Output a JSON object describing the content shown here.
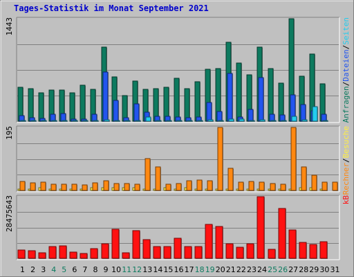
{
  "chart_data": {
    "type": "bar",
    "title": "Tages-Statistik im Monat September 2021",
    "days": [
      "1",
      "2",
      "3",
      "4",
      "5",
      "6",
      "7",
      "8",
      "9",
      "10",
      "11",
      "12",
      "13",
      "14",
      "15",
      "16",
      "17",
      "18",
      "19",
      "20",
      "21",
      "22",
      "23",
      "24",
      "25",
      "26",
      "27",
      "28",
      "29",
      "30",
      "31"
    ],
    "weekend_days": [
      "4",
      "5",
      "11",
      "12",
      "18",
      "19",
      "25",
      "26"
    ],
    "colors": {
      "hits": "#0d7a5f",
      "files": "#2255ee",
      "pages": "#22ccee",
      "visits": "#ff8811",
      "sites": "#ffee44",
      "kbytes": "#ff1111",
      "weekend_label": "#0d7a5f",
      "weekday_label": "#000000"
    },
    "panels": [
      {
        "id": "hits",
        "ymax": 1443,
        "ymax_label": "1443",
        "legend": [
          {
            "text": "Anfragen",
            "color": "#0d7a5f"
          },
          {
            "text": "/",
            "color": "#000000"
          },
          {
            "text": "Dateien",
            "color": "#2255ee"
          },
          {
            "text": "/",
            "color": "#000000"
          },
          {
            "text": "Seiten",
            "color": "#22ccee"
          }
        ],
        "series": [
          {
            "name": "Anfragen",
            "color": "#0d7a5f",
            "values": [
              480,
              460,
              400,
              440,
              440,
              400,
              510,
              450,
              1040,
              620,
              360,
              570,
              450,
              460,
              480,
              600,
              460,
              560,
              730,
              740,
              1110,
              820,
              650,
              1040,
              740,
              540,
              1443,
              630,
              950,
              530,
              0
            ]
          },
          {
            "name": "Dateien",
            "color": "#2255ee",
            "values": [
              80,
              50,
              40,
              100,
              110,
              30,
              30,
              100,
              690,
              290,
              50,
              240,
              130,
              70,
              70,
              60,
              50,
              60,
              260,
              140,
              670,
              60,
              170,
              610,
              100,
              90,
              370,
              230,
              150,
              100,
              0
            ]
          },
          {
            "name": "Seiten",
            "color": "#22ccee",
            "values": [
              10,
              10,
              10,
              10,
              10,
              10,
              10,
              10,
              20,
              10,
              10,
              10,
              60,
              10,
              10,
              10,
              10,
              10,
              20,
              10,
              30,
              30,
              10,
              20,
              10,
              10,
              70,
              20,
              200,
              10,
              0
            ]
          }
        ]
      },
      {
        "id": "visits",
        "ymax": 195,
        "ymax_label": "195",
        "legend": [
          {
            "text": "Rechner",
            "color": "#ff8811"
          },
          {
            "text": "/",
            "color": "#000000"
          },
          {
            "text": "Besuche",
            "color": "#ffee44"
          }
        ],
        "series": [
          {
            "name": "Besuche",
            "color": "#ffee44",
            "values": [
              5,
              5,
              9,
              5,
              5,
              5,
              5,
              9,
              9,
              9,
              9,
              9,
              5,
              5,
              9,
              5,
              9,
              5,
              5,
              5,
              5,
              5,
              5,
              5,
              5,
              5,
              5,
              9,
              9,
              5,
              0
            ]
          },
          {
            "name": "Rechner",
            "color": "#ff8811",
            "values": [
              27,
              23,
              25,
              19,
              20,
              20,
              18,
              23,
              30,
              22,
              21,
              20,
              98,
              73,
              19,
              21,
              30,
              33,
              30,
              195,
              68,
              25,
              28,
              25,
              21,
              20,
              195,
              72,
              48,
              25,
              25
            ]
          }
        ]
      },
      {
        "id": "kbytes",
        "ymax": 28475643,
        "ymax_label": "28475643",
        "legend": [
          {
            "text": "kB",
            "color": "#ff1111"
          }
        ],
        "series": [
          {
            "name": "kB",
            "color": "#ff1111",
            "values": [
              3900000,
              3600000,
              2600000,
              5400000,
              5900000,
              2800000,
              2100000,
              4500000,
              6600000,
              13500000,
              2500000,
              12900000,
              8700000,
              5300000,
              5300000,
              9200000,
              5400000,
              5500000,
              15600000,
              14700000,
              6800000,
              5000000,
              6800000,
              28475643,
              4300000,
              22900000,
              13000000,
              7200000,
              6300000,
              7800000,
              0
            ]
          }
        ]
      }
    ]
  }
}
